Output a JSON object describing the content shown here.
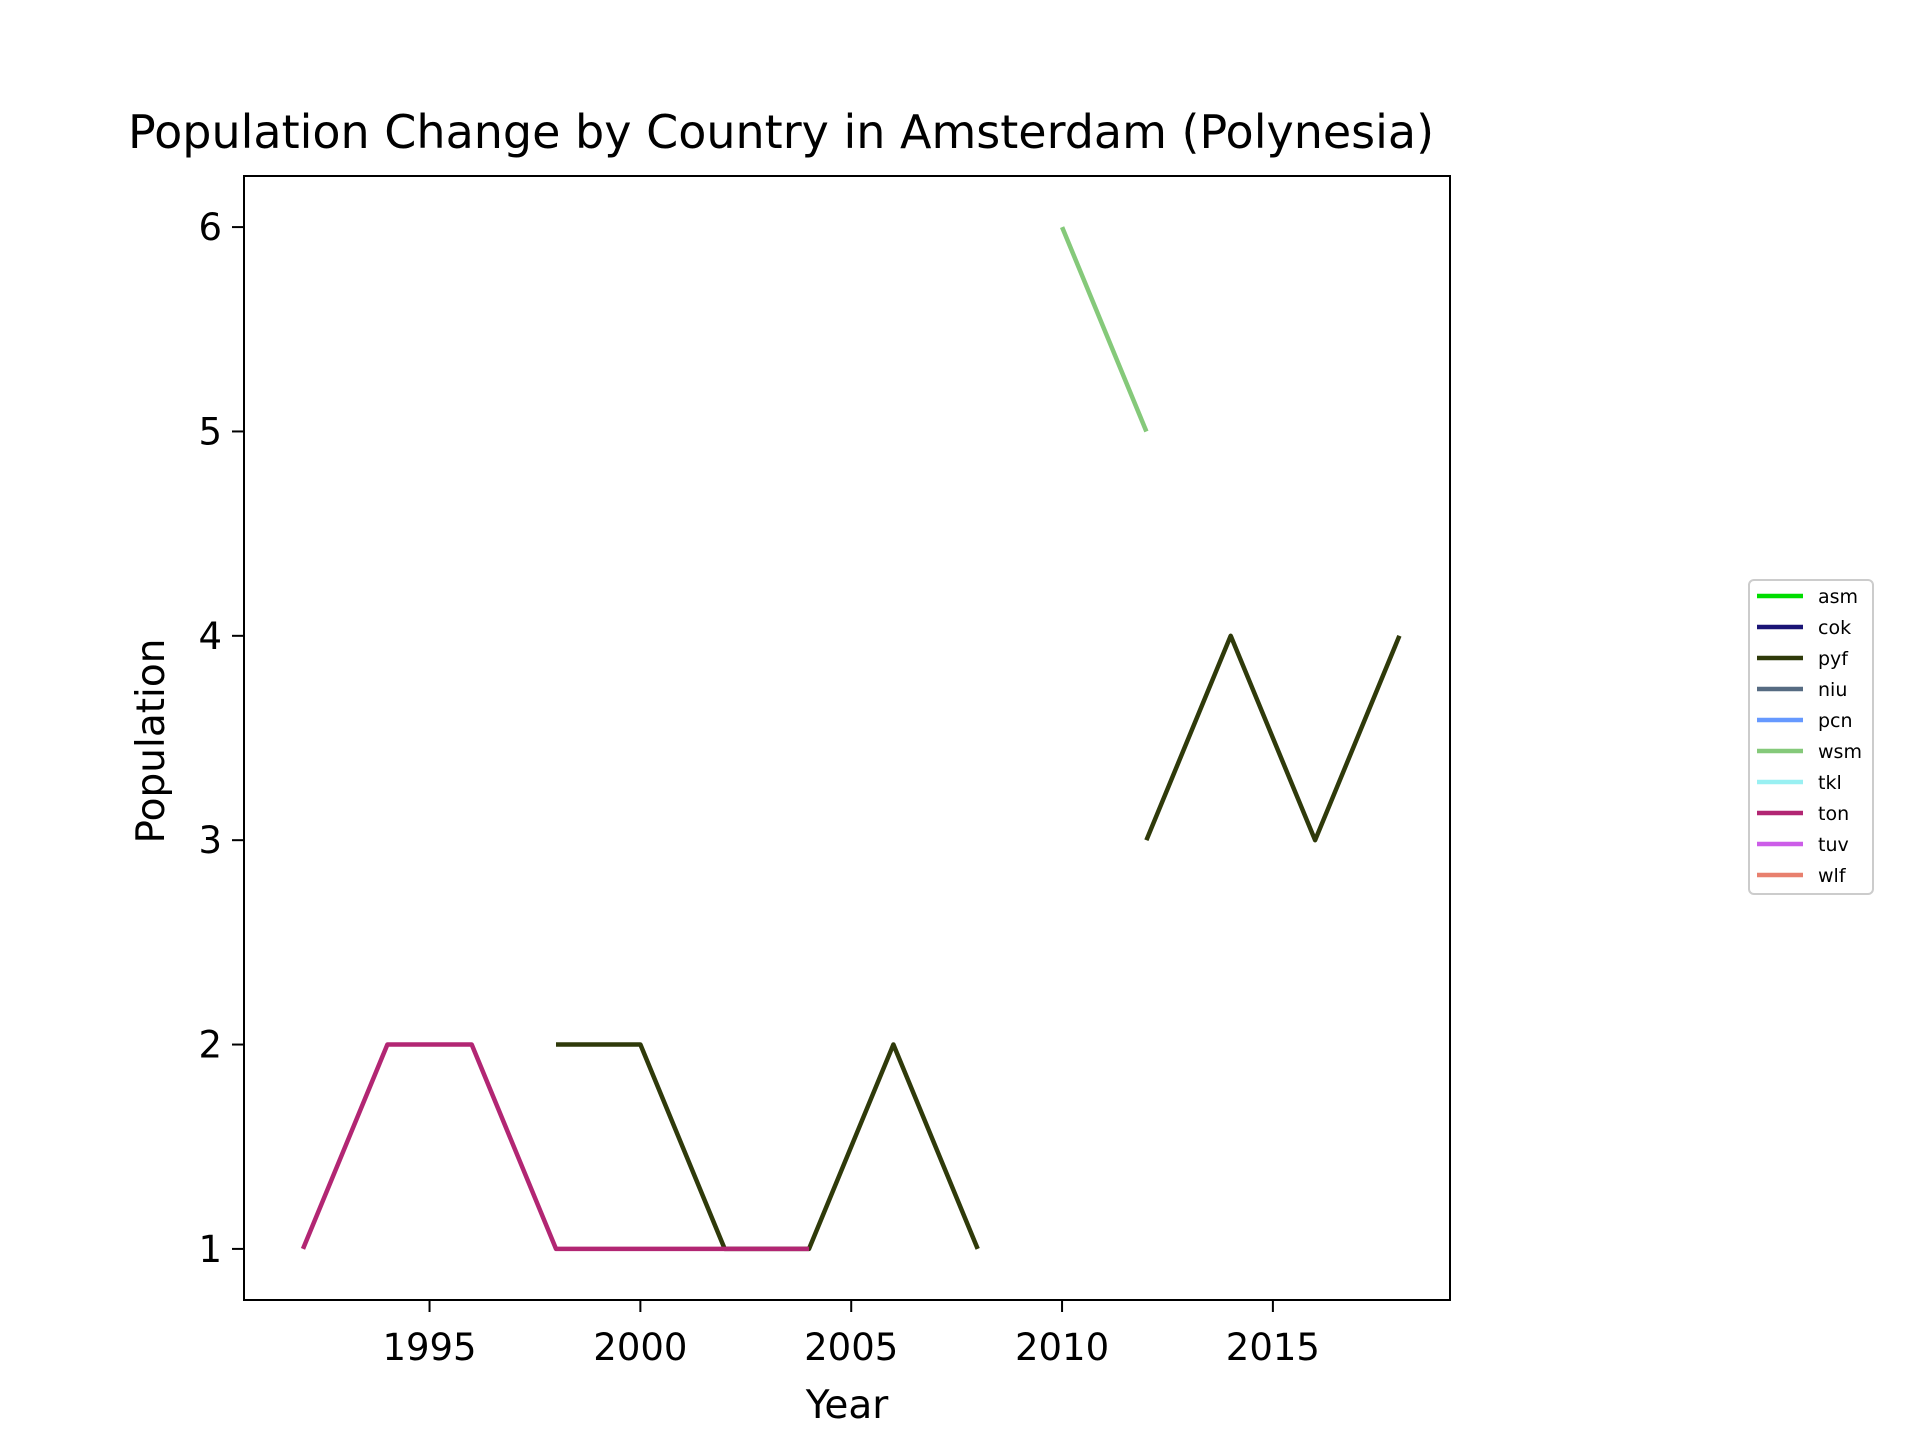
{
  "chart_data": {
    "type": "line",
    "title": "Population Change by Country in Amsterdam (Polynesia)",
    "xlabel": "Year",
    "ylabel": "Population",
    "xlim": [
      1990.6,
      2019.2
    ],
    "ylim": [
      0.75,
      6.25
    ],
    "xticks": [
      1995,
      2000,
      2005,
      2010,
      2015
    ],
    "yticks": [
      1,
      2,
      3,
      4,
      5,
      6
    ],
    "grid": false,
    "legend_position": "right, outside plot",
    "series": [
      {
        "name": "asm",
        "color": "#00dd00",
        "points": []
      },
      {
        "name": "cok",
        "color": "#1a1476",
        "points": []
      },
      {
        "name": "pyf",
        "color": "#2f3a0a",
        "points": [
          [
            1998,
            2
          ],
          [
            2000,
            2
          ],
          [
            2002,
            1
          ],
          [
            2004,
            1
          ],
          [
            2006,
            2
          ],
          [
            2008,
            1
          ],
          null,
          [
            2012,
            3
          ],
          [
            2014,
            4
          ],
          [
            2016,
            3
          ],
          [
            2018,
            4
          ]
        ]
      },
      {
        "name": "niu",
        "color": "#566b82",
        "points": []
      },
      {
        "name": "pcn",
        "color": "#6699ff",
        "points": []
      },
      {
        "name": "wsm",
        "color": "#85c97a",
        "points": [
          [
            2010,
            6
          ],
          [
            2012,
            5
          ]
        ]
      },
      {
        "name": "tkl",
        "color": "#99f0f2",
        "points": []
      },
      {
        "name": "ton",
        "color": "#b22673",
        "points": [
          [
            1992,
            1
          ],
          [
            1994,
            2
          ],
          [
            1996,
            2
          ],
          [
            1998,
            1
          ],
          [
            2000,
            1
          ],
          [
            2002,
            1
          ],
          [
            2004,
            1
          ]
        ]
      },
      {
        "name": "tuv",
        "color": "#cc5de8",
        "points": []
      },
      {
        "name": "wlf",
        "color": "#e8806e",
        "points": []
      }
    ]
  }
}
